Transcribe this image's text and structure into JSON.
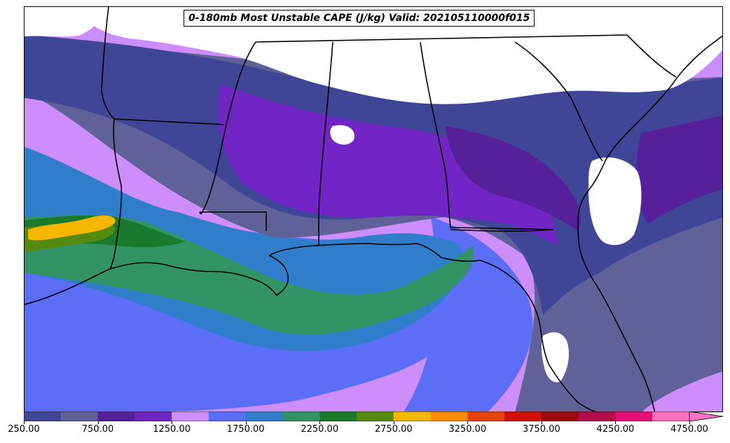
{
  "title": "0-180mb Most Unstable CAPE (J/kg) Valid: 202105110000f015",
  "colorbar": {
    "colors": [
      "#3f4597",
      "#5f6198",
      "#56209a",
      "#7125c5",
      "#cd8dfa",
      "#5c6df8",
      "#2f7dcb",
      "#329464",
      "#1a7a2c",
      "#558a10",
      "#f5b700",
      "#ff8c00",
      "#e4430a",
      "#d10f06",
      "#9c0c0f",
      "#b00d4a",
      "#e80f7b",
      "#fe70c2"
    ],
    "tick_labels": [
      "250.00",
      "750.00",
      "1250.00",
      "1750.00",
      "2250.00",
      "2750.00",
      "3250.00",
      "3750.00",
      "4250.00",
      "4750.00"
    ],
    "extend": "max"
  }
}
